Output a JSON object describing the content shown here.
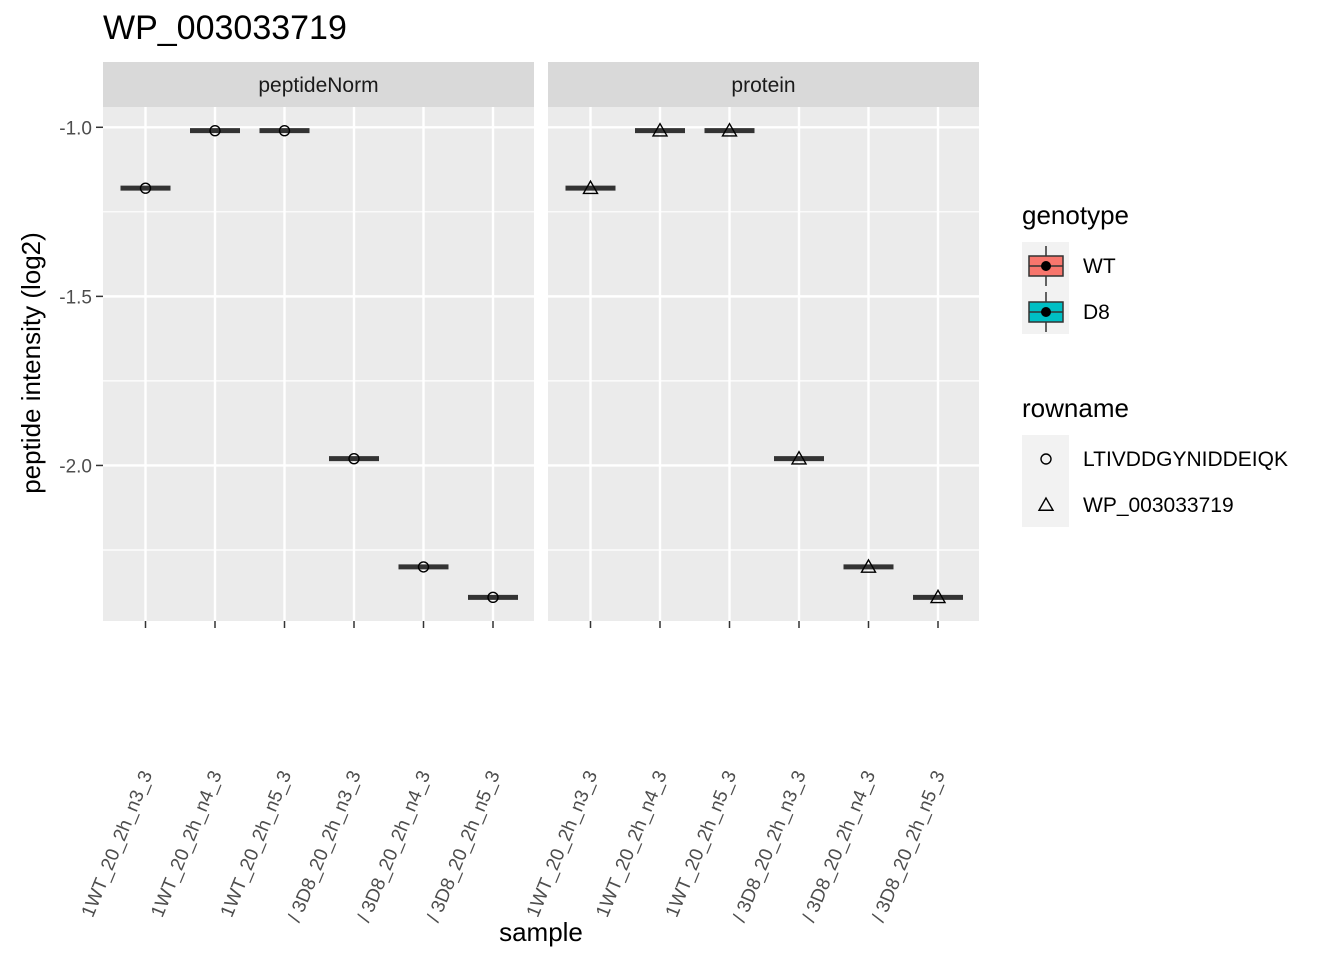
{
  "chart_data": {
    "type": "box",
    "title": "WP_003033719",
    "xlabel": "sample",
    "ylabel": "peptide intensity (log2)",
    "ylim": [
      -2.46,
      -0.94
    ],
    "y_ticks": [
      -1.0,
      -1.5,
      -2.0
    ],
    "y_tick_labels": [
      "-1.0",
      "-1.5",
      "-2.0"
    ],
    "grid": true,
    "legend_position": "right",
    "categories": [
      "1WT_20_2h_n3_3",
      "1WT_20_2h_n4_3",
      "1WT_20_2h_n5_3",
      "/ 3D8_20_2h_n3_3",
      "/ 3D8_20_2h_n4_3",
      "/ 3D8_20_2h_n5_3"
    ],
    "sample_genotype": [
      "WT",
      "WT",
      "WT",
      "D8",
      "D8",
      "D8"
    ],
    "panels": [
      {
        "strip": "peptideNorm",
        "shape": "circle",
        "values": [
          -1.18,
          -1.01,
          -1.01,
          -1.98,
          -2.3,
          -2.39
        ]
      },
      {
        "strip": "protein",
        "shape": "triangle",
        "values": [
          -1.18,
          -1.01,
          -1.01,
          -1.98,
          -2.3,
          -2.39
        ]
      }
    ],
    "legends": {
      "genotype": {
        "title": "genotype",
        "items": [
          {
            "label": "WT",
            "color": "#F8766D"
          },
          {
            "label": "D8",
            "color": "#00BFC4"
          }
        ]
      },
      "rowname": {
        "title": "rowname",
        "items": [
          {
            "label": "LTIVDDGYNIDDEIQK",
            "shape": "circle"
          },
          {
            "label": "WP_003033719",
            "shape": "triangle"
          }
        ]
      }
    }
  },
  "colors": {
    "panel_bg": "#EBEBEB",
    "strip_bg": "#D9D9D9",
    "grid": "#FFFFFF",
    "box_line": "#333333"
  }
}
